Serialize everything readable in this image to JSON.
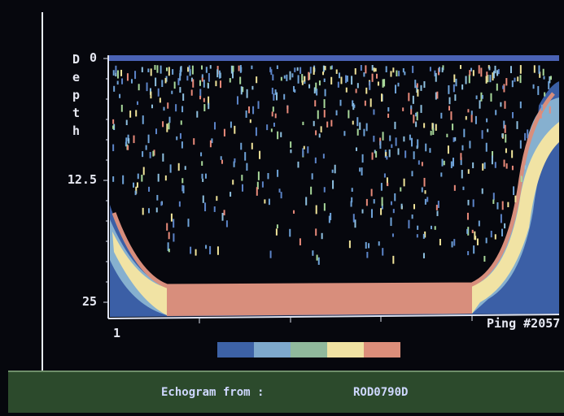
{
  "axis": {
    "title": "Depth",
    "yticks": [
      0,
      12.5,
      25
    ],
    "x_start": "1",
    "x_end": "Ping #2057"
  },
  "footer": {
    "label": "Echogram from :",
    "file": "ROD0790D"
  }
}
